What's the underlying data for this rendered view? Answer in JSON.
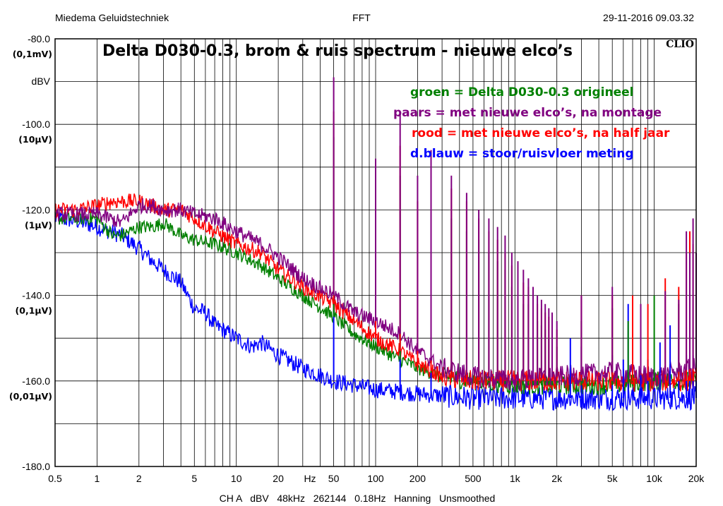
{
  "header": {
    "left": "Miedema Geluidstechniek",
    "center": "FFT",
    "right": "29-11-2016 09.03.32"
  },
  "brand": "CLIO",
  "footer": {
    "settings": "CH A   dBV   48kHz   262144   0.18Hz   Hanning   Unsmoothed"
  },
  "chart_data": {
    "type": "line",
    "title": "Delta D030-0.3, brom & ruis spectrum  -  nieuwe elco’s",
    "ylabel": "dBV",
    "xlabel": "Hz",
    "xscale": "log",
    "xlim": [
      0.5,
      20000
    ],
    "ylim": [
      -180,
      -80
    ],
    "grid": true,
    "legend_placement": "top-right",
    "x_ticks": [
      {
        "value": 0.5,
        "label": "0.5"
      },
      {
        "value": 1,
        "label": "1"
      },
      {
        "value": 2,
        "label": "2"
      },
      {
        "value": 5,
        "label": "5"
      },
      {
        "value": 10,
        "label": "10"
      },
      {
        "value": 20,
        "label": "20"
      },
      {
        "value": 50,
        "label": "50"
      },
      {
        "value": 100,
        "label": "100"
      },
      {
        "value": 200,
        "label": "200"
      },
      {
        "value": 500,
        "label": "500"
      },
      {
        "value": 1000,
        "label": "1k"
      },
      {
        "value": 2000,
        "label": "2k"
      },
      {
        "value": 5000,
        "label": "5k"
      },
      {
        "value": 10000,
        "label": "10k"
      },
      {
        "value": 20000,
        "label": "20k"
      }
    ],
    "y_ticks": [
      {
        "value": -80,
        "label": "-80.0",
        "unit": "(0,1mV)"
      },
      {
        "value": -100,
        "label": "-100.0",
        "unit": "(10µV)"
      },
      {
        "value": -120,
        "label": "-120.0",
        "unit": "(1µV)"
      },
      {
        "value": -140,
        "label": "-140.0",
        "unit": "(0,1µV)"
      },
      {
        "value": -160,
        "label": "-160.0",
        "unit": "(0,01µV)"
      },
      {
        "value": -180,
        "label": "-180.0",
        "unit": ""
      }
    ],
    "legend": [
      {
        "text": "groen = Delta D030-0.3 origineel",
        "color": "#008000"
      },
      {
        "text": "paars = met nieuwe elco’s, na montage",
        "color": "#800080"
      },
      {
        "text": "rood   = met nieuwe elco’s, na half jaar",
        "color": "#ff0000"
      },
      {
        "text": "d.blauw = stoor/ruisvloer meting",
        "color": "#0000ff"
      }
    ],
    "series": [
      {
        "color": "#0000ff",
        "noise": 2.0,
        "points": [
          [
            0.5,
            -122
          ],
          [
            0.7,
            -122.5
          ],
          [
            1,
            -124
          ],
          [
            1.5,
            -126
          ],
          [
            2,
            -129
          ],
          [
            2.5,
            -132
          ],
          [
            3,
            -134
          ],
          [
            4,
            -137
          ],
          [
            5,
            -143
          ],
          [
            6,
            -144
          ],
          [
            7,
            -147
          ],
          [
            8,
            -148
          ],
          [
            10,
            -150
          ],
          [
            13,
            -152
          ],
          [
            15,
            -151
          ],
          [
            20,
            -154
          ],
          [
            30,
            -157
          ],
          [
            50,
            -160
          ],
          [
            100,
            -162
          ],
          [
            200,
            -163
          ],
          [
            500,
            -164
          ],
          [
            1000,
            -164
          ],
          [
            2000,
            -164
          ],
          [
            5000,
            -164
          ],
          [
            10000,
            -164
          ],
          [
            20000,
            -164
          ]
        ],
        "peaks": [
          [
            50,
            -142
          ],
          [
            150,
            -148
          ],
          [
            250,
            -158
          ],
          [
            2500,
            -150
          ],
          [
            3000,
            -152
          ],
          [
            5000,
            -154
          ],
          [
            6000,
            -155
          ],
          [
            6500,
            -142
          ],
          [
            8000,
            -156
          ],
          [
            9000,
            -155
          ],
          [
            11000,
            -151
          ],
          [
            13000,
            -147
          ],
          [
            15000,
            -150
          ],
          [
            17000,
            -154
          ],
          [
            18000,
            -151
          ],
          [
            19000,
            -154
          ],
          [
            20000,
            -150
          ]
        ]
      },
      {
        "color": "#008000",
        "noise": 1.6,
        "points": [
          [
            0.5,
            -122
          ],
          [
            0.8,
            -122
          ],
          [
            1,
            -122
          ],
          [
            1.3,
            -126
          ],
          [
            1.5,
            -126
          ],
          [
            2,
            -124
          ],
          [
            2.5,
            -124
          ],
          [
            3,
            -123
          ],
          [
            4,
            -126
          ],
          [
            5,
            -127
          ],
          [
            7,
            -128
          ],
          [
            10,
            -130
          ],
          [
            15,
            -133
          ],
          [
            20,
            -136
          ],
          [
            30,
            -140
          ],
          [
            50,
            -145
          ],
          [
            70,
            -149
          ],
          [
            100,
            -152
          ],
          [
            150,
            -155
          ],
          [
            200,
            -157
          ],
          [
            300,
            -159
          ],
          [
            500,
            -160
          ],
          [
            1000,
            -161
          ],
          [
            2000,
            -161
          ],
          [
            5000,
            -161
          ],
          [
            10000,
            -160
          ],
          [
            20000,
            -160
          ]
        ],
        "peaks": [
          [
            50,
            -103
          ],
          [
            150,
            -112
          ],
          [
            250,
            -120
          ],
          [
            350,
            -122
          ],
          [
            450,
            -125
          ],
          [
            550,
            -127
          ],
          [
            650,
            -130
          ],
          [
            750,
            -132
          ],
          [
            850,
            -134
          ],
          [
            950,
            -138
          ],
          [
            1050,
            -140
          ],
          [
            1150,
            -142
          ],
          [
            1250,
            -142
          ],
          [
            1350,
            -144
          ],
          [
            1450,
            -146
          ],
          [
            1550,
            -147
          ],
          [
            1650,
            -148
          ],
          [
            1750,
            -150
          ],
          [
            1850,
            -151
          ],
          [
            2000,
            -152
          ],
          [
            3000,
            -146
          ],
          [
            5000,
            -143
          ],
          [
            6500,
            -146
          ],
          [
            10000,
            -140
          ],
          [
            15000,
            -142
          ],
          [
            18000,
            -143
          ]
        ]
      },
      {
        "color": "#ff0000",
        "noise": 1.8,
        "points": [
          [
            0.5,
            -120
          ],
          [
            0.7,
            -120
          ],
          [
            1,
            -119
          ],
          [
            1.3,
            -118
          ],
          [
            1.5,
            -118
          ],
          [
            2,
            -118
          ],
          [
            2.5,
            -119
          ],
          [
            3,
            -120
          ],
          [
            4,
            -120
          ],
          [
            5,
            -122
          ],
          [
            7,
            -125
          ],
          [
            10,
            -128
          ],
          [
            15,
            -130
          ],
          [
            20,
            -134
          ],
          [
            30,
            -138
          ],
          [
            50,
            -142
          ],
          [
            70,
            -146
          ],
          [
            100,
            -150
          ],
          [
            150,
            -153
          ],
          [
            200,
            -156
          ],
          [
            300,
            -159
          ],
          [
            500,
            -160
          ],
          [
            1000,
            -160
          ],
          [
            2000,
            -160
          ],
          [
            5000,
            -160
          ],
          [
            10000,
            -160
          ],
          [
            20000,
            -160
          ]
        ],
        "peaks": [
          [
            50,
            -97
          ],
          [
            100,
            -118
          ],
          [
            150,
            -105
          ],
          [
            200,
            -118
          ],
          [
            250,
            -110
          ],
          [
            350,
            -115
          ],
          [
            450,
            -118
          ],
          [
            550,
            -122
          ],
          [
            650,
            -125
          ],
          [
            750,
            -127
          ],
          [
            850,
            -130
          ],
          [
            950,
            -133
          ],
          [
            1050,
            -135
          ],
          [
            1150,
            -137
          ],
          [
            1250,
            -138
          ],
          [
            1350,
            -140
          ],
          [
            1450,
            -142
          ],
          [
            1550,
            -143
          ],
          [
            1650,
            -144
          ],
          [
            1750,
            -145
          ],
          [
            1850,
            -146
          ],
          [
            2000,
            -148
          ],
          [
            3000,
            -140
          ],
          [
            5000,
            -140
          ],
          [
            7000,
            -140
          ],
          [
            9000,
            -142
          ],
          [
            12000,
            -136
          ],
          [
            15000,
            -138
          ],
          [
            17000,
            -130
          ],
          [
            18000,
            -125
          ],
          [
            19000,
            -128
          ],
          [
            20000,
            -135
          ]
        ]
      },
      {
        "color": "#800080",
        "noise": 1.8,
        "points": [
          [
            0.5,
            -121
          ],
          [
            0.7,
            -121
          ],
          [
            1,
            -121
          ],
          [
            1.5,
            -123
          ],
          [
            2,
            -119
          ],
          [
            2.5,
            -119
          ],
          [
            3,
            -120
          ],
          [
            4,
            -120
          ],
          [
            5,
            -121
          ],
          [
            7,
            -122
          ],
          [
            10,
            -125
          ],
          [
            15,
            -128
          ],
          [
            20,
            -131
          ],
          [
            30,
            -136
          ],
          [
            50,
            -140
          ],
          [
            70,
            -144
          ],
          [
            100,
            -146
          ],
          [
            150,
            -149
          ],
          [
            200,
            -153
          ],
          [
            300,
            -157
          ],
          [
            500,
            -159
          ],
          [
            1000,
            -160
          ],
          [
            2000,
            -159
          ],
          [
            5000,
            -158
          ],
          [
            10000,
            -159
          ],
          [
            20000,
            -157
          ]
        ],
        "peaks": [
          [
            50,
            -89
          ],
          [
            100,
            -108
          ],
          [
            150,
            -97
          ],
          [
            200,
            -112
          ],
          [
            250,
            -106
          ],
          [
            350,
            -112
          ],
          [
            450,
            -116
          ],
          [
            550,
            -120
          ],
          [
            650,
            -122
          ],
          [
            750,
            -124
          ],
          [
            850,
            -126
          ],
          [
            950,
            -130
          ],
          [
            1050,
            -132
          ],
          [
            1150,
            -134
          ],
          [
            1250,
            -136
          ],
          [
            1350,
            -138
          ],
          [
            1450,
            -140
          ],
          [
            1550,
            -141
          ],
          [
            1650,
            -142
          ],
          [
            1750,
            -143
          ],
          [
            1850,
            -144
          ],
          [
            2000,
            -146
          ],
          [
            3000,
            -140
          ],
          [
            5000,
            -138
          ],
          [
            8000,
            -142
          ],
          [
            12000,
            -139
          ],
          [
            15000,
            -141
          ],
          [
            17000,
            -125
          ],
          [
            18000,
            -130
          ],
          [
            19000,
            -122
          ],
          [
            20000,
            -130
          ]
        ]
      }
    ]
  }
}
